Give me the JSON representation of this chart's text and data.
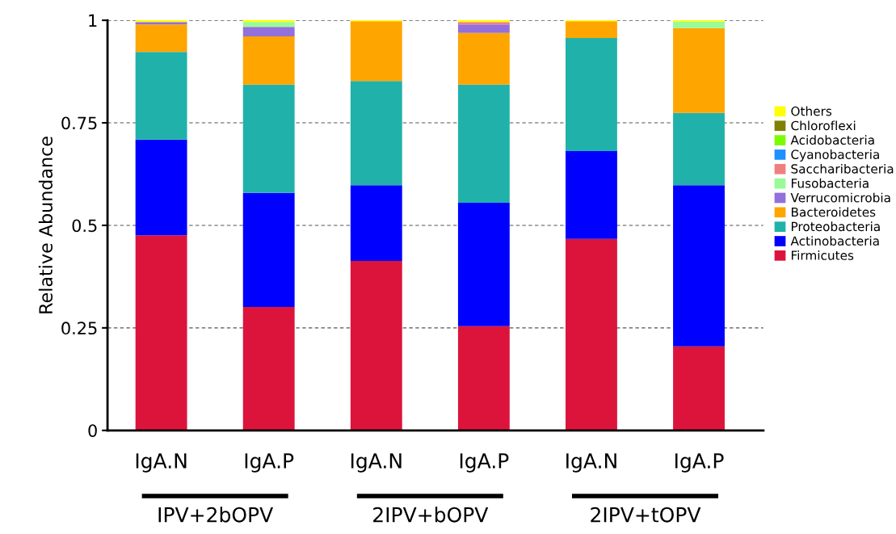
{
  "chart_data": {
    "type": "bar",
    "stacked": true,
    "ylabel": "Relative Abundance",
    "categories": [
      "IgA.N",
      "IgA.P",
      "IgA.N",
      "IgA.P",
      "IgA.N",
      "IgA.P"
    ],
    "annotations": [
      "IPV+2bOPV",
      "2IPV+bOPV",
      "2IPV+tOPV"
    ],
    "ylim": [
      0,
      1
    ],
    "yticks": [
      0,
      0.25,
      0.5,
      0.75,
      1
    ],
    "grid": "y",
    "legend": "right",
    "series": [
      {
        "name": "Firmicutes",
        "color": "#dc143c",
        "values": [
          0.476,
          0.301,
          0.413,
          0.254,
          0.467,
          0.205
        ]
      },
      {
        "name": "Actinobacteria",
        "color": "#0000ff",
        "values": [
          0.233,
          0.278,
          0.185,
          0.301,
          0.214,
          0.393
        ]
      },
      {
        "name": "Proteobacteria",
        "color": "#20b2aa",
        "values": [
          0.214,
          0.264,
          0.254,
          0.288,
          0.276,
          0.176
        ]
      },
      {
        "name": "Bacteroidetes",
        "color": "#ffa500",
        "values": [
          0.067,
          0.118,
          0.146,
          0.126,
          0.041,
          0.207
        ]
      },
      {
        "name": "Verrucomicrobia",
        "color": "#9370db",
        "values": [
          0.006,
          0.023,
          0,
          0.021,
          0,
          0
        ]
      },
      {
        "name": "Fusobacteria",
        "color": "#98fb98",
        "values": [
          0,
          0.012,
          0,
          0,
          0,
          0.016
        ]
      },
      {
        "name": "Saccharibacteria",
        "color": "#f08080",
        "values": [
          0,
          0,
          0,
          0.006,
          0,
          0
        ]
      },
      {
        "name": "Cyanobacteria",
        "color": "#1e90ff",
        "values": [
          0,
          0,
          0,
          0,
          0,
          0
        ]
      },
      {
        "name": "Acidobacteria",
        "color": "#7cfc00",
        "values": [
          0,
          0,
          0,
          0,
          0,
          0
        ]
      },
      {
        "name": "Chloroflexi",
        "color": "#808000",
        "values": [
          0,
          0,
          0,
          0,
          0,
          0
        ]
      },
      {
        "name": "Others",
        "color": "#ffff00",
        "values": [
          0.004,
          0.004,
          0.002,
          0.004,
          0.002,
          0.003
        ]
      }
    ]
  }
}
